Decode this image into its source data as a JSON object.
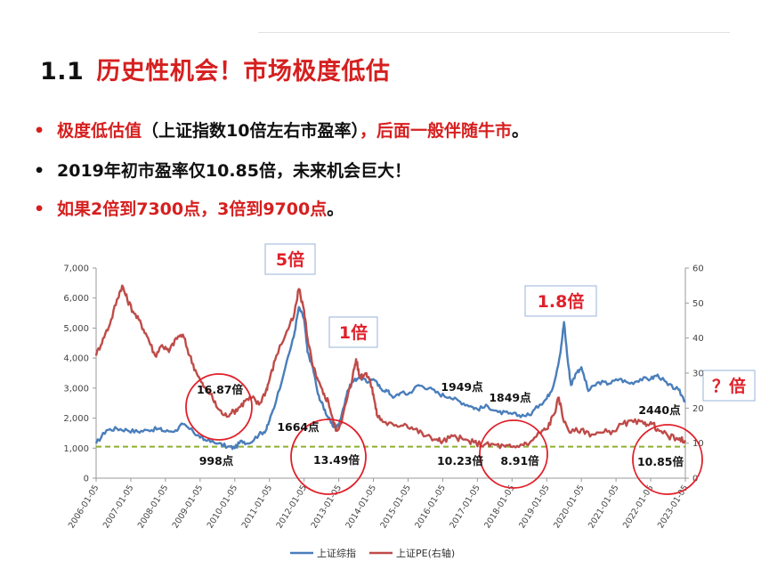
{
  "heading": {
    "number": "1.1",
    "text": "历史性机会！市场极度低估"
  },
  "bullets": [
    {
      "parts": [
        {
          "text": "极度低估值",
          "color": "#d61f1f"
        },
        {
          "text": "（上证指数10倍左右市盈率）",
          "color": "#111111"
        },
        {
          "text": "，后面一般伴随牛市",
          "color": "#d61f1f"
        },
        {
          "text": "。",
          "color": "#111111"
        }
      ],
      "dot_color": "#d61f1f"
    },
    {
      "parts": [
        {
          "text": "2019年初市盈率仅10.85倍，未来机会巨大！",
          "color": "#111111"
        }
      ],
      "dot_color": "#111111"
    },
    {
      "parts": [
        {
          "text": "如果2倍到7300点，3倍到9700点",
          "color": "#d61f1f"
        },
        {
          "text": "。",
          "color": "#111111"
        }
      ],
      "dot_color": "#d61f1f"
    }
  ],
  "colors": {
    "index_series": "#4a7ebb",
    "pe_series": "#be4b48",
    "annotation_red": "#e0202a",
    "dashed_line": "#8db030"
  },
  "chart_data": {
    "type": "line",
    "x_ticks": [
      "2006-01-05",
      "2007-01-05",
      "2008-01-05",
      "2009-01-05",
      "2010-01-05",
      "2011-01-05",
      "2012-01-05",
      "2013-01-05",
      "2014-01-05",
      "2015-01-05",
      "2016-01-05",
      "2017-01-05",
      "2018-01-05",
      "2019-01-05",
      "2020-01-05",
      "2021-01-05",
      "2022-01-05",
      "2023-01-05"
    ],
    "y_left": {
      "min": 0,
      "max": 7000,
      "ticks": [
        "0",
        "1,000",
        "2,000",
        "3,000",
        "4,000",
        "5,000",
        "6,000",
        "7,000"
      ]
    },
    "y_right": {
      "min": 0,
      "max": 60,
      "ticks": [
        "0",
        "10",
        "20",
        "30",
        "40",
        "50",
        "60"
      ]
    },
    "reference_line": {
      "axis": "right",
      "value": 9
    },
    "series": [
      {
        "name": "上证综指",
        "axis": "left",
        "points": [
          [
            2006.0,
            1160
          ],
          [
            2006.3,
            1600
          ],
          [
            2006.6,
            1650
          ],
          [
            2006.9,
            1600
          ],
          [
            2007.2,
            1550
          ],
          [
            2007.5,
            1600
          ],
          [
            2007.8,
            1650
          ],
          [
            2008.0,
            1550
          ],
          [
            2008.3,
            1600
          ],
          [
            2008.5,
            1800
          ],
          [
            2008.8,
            1550
          ],
          [
            2009.0,
            1350
          ],
          [
            2009.2,
            1250
          ],
          [
            2009.5,
            1150
          ],
          [
            2009.8,
            1050
          ],
          [
            2010.0,
            1000
          ],
          [
            2010.2,
            1250
          ],
          [
            2010.4,
            1150
          ],
          [
            2010.7,
            1450
          ],
          [
            2010.9,
            1600
          ],
          [
            2011.0,
            1900
          ],
          [
            2011.2,
            2600
          ],
          [
            2011.5,
            3900
          ],
          [
            2011.7,
            4700
          ],
          [
            2011.85,
            5700
          ],
          [
            2012.0,
            5300
          ],
          [
            2012.1,
            4200
          ],
          [
            2012.25,
            3700
          ],
          [
            2012.4,
            2800
          ],
          [
            2012.55,
            2400
          ],
          [
            2012.7,
            2000
          ],
          [
            2012.85,
            1700
          ],
          [
            2013.0,
            1750
          ],
          [
            2013.1,
            2200
          ],
          [
            2013.25,
            2900
          ],
          [
            2013.4,
            3200
          ],
          [
            2013.6,
            3400
          ],
          [
            2013.8,
            3200
          ],
          [
            2014.0,
            3300
          ],
          [
            2014.2,
            3000
          ],
          [
            2014.4,
            2900
          ],
          [
            2014.6,
            2700
          ],
          [
            2014.8,
            2850
          ],
          [
            2015.0,
            2800
          ],
          [
            2015.3,
            3100
          ],
          [
            2015.6,
            3000
          ],
          [
            2015.9,
            2800
          ],
          [
            2016.2,
            2700
          ],
          [
            2016.5,
            2550
          ],
          [
            2016.8,
            2400
          ],
          [
            2017.0,
            2300
          ],
          [
            2017.3,
            2400
          ],
          [
            2017.6,
            2200
          ],
          [
            2017.9,
            2150
          ],
          [
            2018.2,
            2100
          ],
          [
            2018.5,
            2100
          ],
          [
            2018.8,
            2450
          ],
          [
            2019.0,
            2650
          ],
          [
            2019.2,
            3100
          ],
          [
            2019.4,
            4200
          ],
          [
            2019.5,
            5200
          ],
          [
            2019.6,
            4000
          ],
          [
            2019.7,
            3100
          ],
          [
            2019.85,
            3500
          ],
          [
            2020.0,
            3700
          ],
          [
            2020.2,
            2900
          ],
          [
            2020.5,
            3200
          ],
          [
            2020.8,
            3150
          ],
          [
            2021.1,
            3300
          ],
          [
            2021.4,
            3150
          ],
          [
            2021.7,
            3300
          ],
          [
            2022.0,
            3300
          ],
          [
            2022.2,
            3450
          ],
          [
            2022.5,
            3100
          ],
          [
            2022.8,
            2950
          ],
          [
            2023.0,
            2550
          ]
        ]
      },
      {
        "name": "上证PE(右轴)",
        "axis": "right",
        "points": [
          [
            2006.0,
            35
          ],
          [
            2006.2,
            40
          ],
          [
            2006.4,
            44
          ],
          [
            2006.6,
            51
          ],
          [
            2006.75,
            55
          ],
          [
            2006.9,
            51
          ],
          [
            2007.1,
            47
          ],
          [
            2007.3,
            44
          ],
          [
            2007.5,
            40
          ],
          [
            2007.7,
            35
          ],
          [
            2007.9,
            38
          ],
          [
            2008.1,
            36
          ],
          [
            2008.3,
            40
          ],
          [
            2008.5,
            41
          ],
          [
            2008.7,
            35
          ],
          [
            2008.9,
            30
          ],
          [
            2009.1,
            26
          ],
          [
            2009.3,
            24
          ],
          [
            2009.5,
            20
          ],
          [
            2009.7,
            18
          ],
          [
            2009.9,
            18.5
          ],
          [
            2010.1,
            20
          ],
          [
            2010.3,
            22
          ],
          [
            2010.5,
            23
          ],
          [
            2010.7,
            21
          ],
          [
            2010.9,
            25
          ],
          [
            2011.0,
            28
          ],
          [
            2011.2,
            35
          ],
          [
            2011.5,
            42
          ],
          [
            2011.7,
            46
          ],
          [
            2011.85,
            54
          ],
          [
            2012.0,
            48
          ],
          [
            2012.1,
            40
          ],
          [
            2012.25,
            32
          ],
          [
            2012.4,
            28
          ],
          [
            2012.55,
            24
          ],
          [
            2012.7,
            22
          ],
          [
            2012.85,
            16
          ],
          [
            2012.95,
            13.5
          ],
          [
            2013.1,
            17
          ],
          [
            2013.25,
            23
          ],
          [
            2013.4,
            29
          ],
          [
            2013.5,
            34
          ],
          [
            2013.6,
            29
          ],
          [
            2013.8,
            30
          ],
          [
            2013.9,
            28
          ],
          [
            2014.0,
            24
          ],
          [
            2014.1,
            18
          ],
          [
            2014.3,
            16
          ],
          [
            2014.6,
            15
          ],
          [
            2014.9,
            15.5
          ],
          [
            2015.2,
            14
          ],
          [
            2015.5,
            12
          ],
          [
            2015.8,
            11
          ],
          [
            2016.0,
            10.5
          ],
          [
            2016.3,
            12
          ],
          [
            2016.6,
            11
          ],
          [
            2016.9,
            10.2
          ],
          [
            2017.2,
            9.5
          ],
          [
            2017.5,
            9.5
          ],
          [
            2017.8,
            9
          ],
          [
            2018.0,
            8.9
          ],
          [
            2018.3,
            9.5
          ],
          [
            2018.5,
            10
          ],
          [
            2018.8,
            13
          ],
          [
            2019.0,
            14
          ],
          [
            2019.2,
            18
          ],
          [
            2019.35,
            23
          ],
          [
            2019.5,
            16
          ],
          [
            2019.7,
            13
          ],
          [
            2020.0,
            14
          ],
          [
            2020.3,
            12.5
          ],
          [
            2020.6,
            13
          ],
          [
            2020.9,
            13.5
          ],
          [
            2021.2,
            15.5
          ],
          [
            2021.5,
            16
          ],
          [
            2021.8,
            15.5
          ],
          [
            2022.0,
            16
          ],
          [
            2022.2,
            14
          ],
          [
            2022.5,
            12
          ],
          [
            2022.8,
            11
          ],
          [
            2023.0,
            10.8
          ]
        ]
      }
    ]
  },
  "legend": {
    "items": [
      {
        "name": "上证综指",
        "color": "#4a7ebb"
      },
      {
        "name": "上证PE(右轴)",
        "color": "#be4b48"
      }
    ]
  },
  "annotations": {
    "boxes": [
      {
        "text": "5倍",
        "color": "#e0202a"
      },
      {
        "text": "1倍",
        "color": "#e0202a"
      },
      {
        "text": "1.8倍",
        "color": "#e0202a"
      },
      {
        "text": "？倍",
        "color": "#e0202a"
      }
    ],
    "labels": [
      {
        "text": "16.87倍"
      },
      {
        "text": "998点"
      },
      {
        "text": "1664点"
      },
      {
        "text": "13.49倍"
      },
      {
        "text": "1949点"
      },
      {
        "text": "1849点"
      },
      {
        "text": "10.23倍"
      },
      {
        "text": "8.91倍"
      },
      {
        "text": "2440点"
      },
      {
        "text": "10.85倍"
      }
    ]
  }
}
